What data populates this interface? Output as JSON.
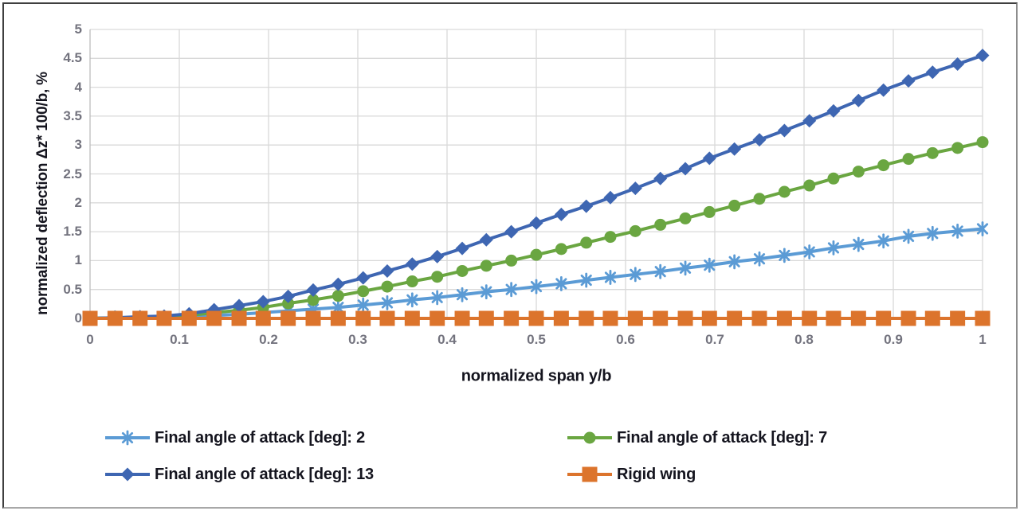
{
  "chart_data": {
    "type": "line",
    "title": "",
    "xlabel": "normalized span y/b",
    "ylabel": "normalized deflection Δz* 100/b, %",
    "xlim": [
      0,
      1
    ],
    "ylim": [
      0,
      5
    ],
    "x_tick_labels": [
      "0",
      "0.1",
      "0.2",
      "0.3",
      "0.4",
      "0.5",
      "0.6",
      "0.7",
      "0.8",
      "0.9",
      "1"
    ],
    "x_tick_values": [
      0,
      0.1,
      0.2,
      0.3,
      0.4,
      0.5,
      0.6,
      0.7,
      0.8,
      0.9,
      1
    ],
    "y_tick_labels": [
      "0",
      "0.5",
      "1",
      "1.5",
      "2",
      "2.5",
      "3",
      "3.5",
      "4",
      "4.5",
      "5"
    ],
    "y_tick_values": [
      0,
      0.5,
      1,
      1.5,
      2,
      2.5,
      3,
      3.5,
      4,
      4.5,
      5
    ],
    "grid": true,
    "grid_color": "#d9d9d9",
    "axis_line_color": "#bcbcbc",
    "legend_position": "bottom-two-columns",
    "x": [
      0,
      0.028,
      0.056,
      0.083,
      0.111,
      0.139,
      0.167,
      0.194,
      0.222,
      0.25,
      0.278,
      0.306,
      0.333,
      0.361,
      0.389,
      0.417,
      0.444,
      0.472,
      0.5,
      0.528,
      0.556,
      0.583,
      0.611,
      0.639,
      0.667,
      0.694,
      0.722,
      0.75,
      0.778,
      0.806,
      0.833,
      0.861,
      0.889,
      0.917,
      0.944,
      0.972,
      1
    ],
    "series": [
      {
        "name": "Final angle of attack [deg]: 2",
        "color": "#5b9bd5",
        "marker": "asterisk",
        "values": [
          0,
          0.01,
          0.01,
          0.02,
          0.03,
          0.05,
          0.07,
          0.1,
          0.13,
          0.16,
          0.19,
          0.23,
          0.27,
          0.32,
          0.36,
          0.41,
          0.46,
          0.5,
          0.55,
          0.6,
          0.66,
          0.71,
          0.76,
          0.81,
          0.87,
          0.92,
          0.98,
          1.03,
          1.09,
          1.15,
          1.22,
          1.28,
          1.34,
          1.42,
          1.47,
          1.51,
          1.55
        ]
      },
      {
        "name": "Final angle of attack [deg]: 7",
        "color": "#6aa641",
        "marker": "circle",
        "values": [
          0,
          0.01,
          0.02,
          0.03,
          0.05,
          0.1,
          0.14,
          0.19,
          0.26,
          0.32,
          0.39,
          0.47,
          0.55,
          0.64,
          0.72,
          0.82,
          0.91,
          1,
          1.1,
          1.2,
          1.31,
          1.41,
          1.51,
          1.62,
          1.73,
          1.84,
          1.95,
          2.07,
          2.19,
          2.3,
          2.42,
          2.54,
          2.65,
          2.76,
          2.86,
          2.95,
          3.05
        ]
      },
      {
        "name": "Final angle of attack [deg]: 13",
        "color": "#3e66b2",
        "marker": "diamond",
        "values": [
          0,
          0.01,
          0.03,
          0.04,
          0.08,
          0.15,
          0.22,
          0.29,
          0.38,
          0.49,
          0.59,
          0.7,
          0.82,
          0.94,
          1.07,
          1.21,
          1.36,
          1.5,
          1.65,
          1.8,
          1.94,
          2.09,
          2.25,
          2.42,
          2.59,
          2.77,
          2.93,
          3.09,
          3.25,
          3.42,
          3.59,
          3.77,
          3.95,
          4.11,
          4.26,
          4.4,
          4.55
        ]
      },
      {
        "name": "Rigid wing",
        "color": "#dc742c",
        "marker": "square",
        "values": [
          0,
          0,
          0,
          0,
          0,
          0,
          0,
          0,
          0,
          0,
          0,
          0,
          0,
          0,
          0,
          0,
          0,
          0,
          0,
          0,
          0,
          0,
          0,
          0,
          0,
          0,
          0,
          0,
          0,
          0,
          0,
          0,
          0,
          0,
          0,
          0,
          0
        ]
      }
    ]
  }
}
